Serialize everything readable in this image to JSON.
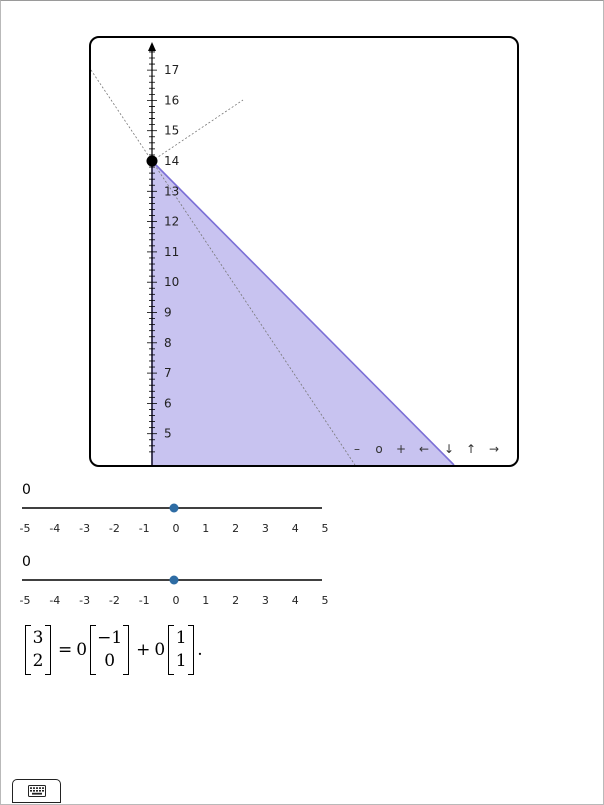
{
  "board": {
    "y_axis": {
      "ticks": [
        5,
        6,
        7,
        8,
        9,
        10,
        11,
        12,
        13,
        14,
        15,
        16,
        17
      ]
    },
    "point": {
      "x": 0,
      "y": 14
    },
    "region_color": "#c8c3f0",
    "line_color": "#7b6fd6",
    "nav_buttons": [
      "–",
      "o",
      "+",
      "←",
      "↓",
      "↑",
      "→"
    ]
  },
  "sliders": [
    {
      "value_label": "0",
      "value": 0,
      "min": -5,
      "max": 5,
      "ticks": [
        "-5",
        "-4",
        "-3",
        "-2",
        "-1",
        "0",
        "1",
        "2",
        "3",
        "4",
        "5"
      ]
    },
    {
      "value_label": "0",
      "value": 0,
      "min": -5,
      "max": 5,
      "ticks": [
        "-5",
        "-4",
        "-3",
        "-2",
        "-1",
        "0",
        "1",
        "2",
        "3",
        "4",
        "5"
      ]
    }
  ],
  "equation": {
    "lhs": [
      "3",
      "2"
    ],
    "equals": "=",
    "coef1": "0",
    "v1": [
      "−1",
      "0"
    ],
    "plus": "+",
    "coef2": "0",
    "v2": [
      "1",
      "1"
    ],
    "period": "."
  },
  "keyboard_icon": "keyboard-icon",
  "colors": {
    "slider_thumb": "#2e6ca4"
  }
}
